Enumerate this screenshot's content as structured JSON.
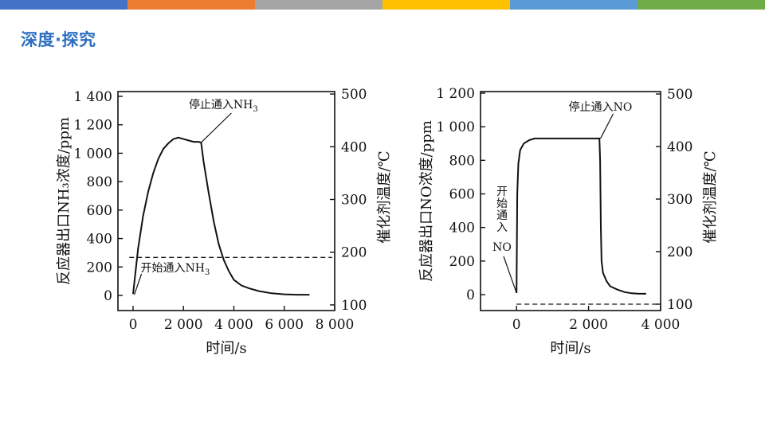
{
  "header": {
    "title": "深度·探究",
    "stripe_colors": [
      "#4472c4",
      "#ed7d31",
      "#a5a5a5",
      "#ffc000",
      "#5b9bd5",
      "#70ad47"
    ]
  },
  "chart_data": [
    {
      "type": "line",
      "xlabel": "时间/s",
      "ylabel": "反应器出口NH₃浓度/ppm",
      "y2label": "催化剂温度/℃",
      "xlim": [
        -600,
        8000
      ],
      "ylim": [
        0,
        1400
      ],
      "y2lim": [
        50,
        550
      ],
      "x_ticks": [
        0,
        2000,
        4000,
        6000,
        8000
      ],
      "x_tick_labels": [
        "0",
        "2 000",
        "4 000",
        "6 000",
        "8 000"
      ],
      "y_ticks": [
        0,
        200,
        400,
        600,
        800,
        1000,
        1200,
        1400
      ],
      "y_tick_labels": [
        "0",
        "200",
        "400",
        "600",
        "800",
        "1 000",
        "1 200",
        "1 400"
      ],
      "y2_ticks": [
        100,
        200,
        300,
        400,
        500
      ],
      "y2_tick_labels": [
        "100",
        "200",
        "300",
        "400",
        "500"
      ],
      "grid": false,
      "series": [
        {
          "style": "solid",
          "axis": "left",
          "x": [
            0,
            200,
            400,
            600,
            800,
            1000,
            1200,
            1400,
            1600,
            1800,
            2000,
            2200,
            2400,
            2600,
            2700,
            2800,
            3000,
            3200,
            3400,
            3600,
            3800,
            4000,
            4300,
            4600,
            5000,
            5500,
            6000,
            6500,
            7000
          ],
          "y": [
            10,
            330,
            560,
            730,
            860,
            960,
            1030,
            1070,
            1100,
            1110,
            1100,
            1090,
            1080,
            1080,
            1075,
            940,
            720,
            520,
            360,
            250,
            170,
            110,
            70,
            50,
            30,
            15,
            8,
            5,
            5
          ]
        },
        {
          "style": "dashed",
          "axis": "right",
          "x": [
            -150,
            7900
          ],
          "y": [
            190,
            190
          ]
        }
      ],
      "annotations": [
        {
          "text": "停止通入NH",
          "sub": "3",
          "x": 2700,
          "y": 1075
        },
        {
          "text": "开始通入NH",
          "sub": "3",
          "x": 50,
          "y": 5
        }
      ]
    },
    {
      "type": "line",
      "xlabel": "时间/s",
      "ylabel": "反应器出口NO浓度/ppm",
      "y2label": "催化剂温度/℃",
      "xlim": [
        -1000,
        4000
      ],
      "ylim": [
        0,
        1200
      ],
      "y2lim": [
        50,
        550
      ],
      "x_ticks": [
        0,
        2000,
        4000
      ],
      "x_tick_labels": [
        "0",
        "2 000",
        "4 000"
      ],
      "y_ticks": [
        0,
        200,
        400,
        600,
        800,
        1000,
        1200
      ],
      "y_tick_labels": [
        "0",
        "200",
        "400",
        "600",
        "800",
        "1 000",
        "1 200"
      ],
      "y2_ticks": [
        100,
        200,
        300,
        400,
        500
      ],
      "y2_tick_labels": [
        "100",
        "200",
        "300",
        "400",
        "500"
      ],
      "grid": false,
      "series": [
        {
          "style": "solid",
          "axis": "left",
          "x": [
            0,
            20,
            50,
            100,
            200,
            350,
            500,
            800,
            1200,
            1600,
            2000,
            2300,
            2320,
            2340,
            2360,
            2400,
            2500,
            2600,
            2800,
            3000,
            3200,
            3400,
            3600
          ],
          "y": [
            10,
            600,
            780,
            860,
            900,
            920,
            930,
            930,
            930,
            930,
            930,
            930,
            800,
            400,
            200,
            130,
            80,
            50,
            30,
            15,
            8,
            5,
            5
          ]
        },
        {
          "style": "dashed",
          "axis": "right",
          "x": [
            0,
            4000
          ],
          "y": [
            100,
            100
          ]
        }
      ],
      "annotations": [
        {
          "text": "停止通入NO",
          "x": 2330,
          "y": 930
        },
        {
          "text_lines": [
            "开",
            "始",
            "通",
            "入"
          ],
          "tail": "NO",
          "x": 0,
          "y": 10
        }
      ]
    }
  ]
}
